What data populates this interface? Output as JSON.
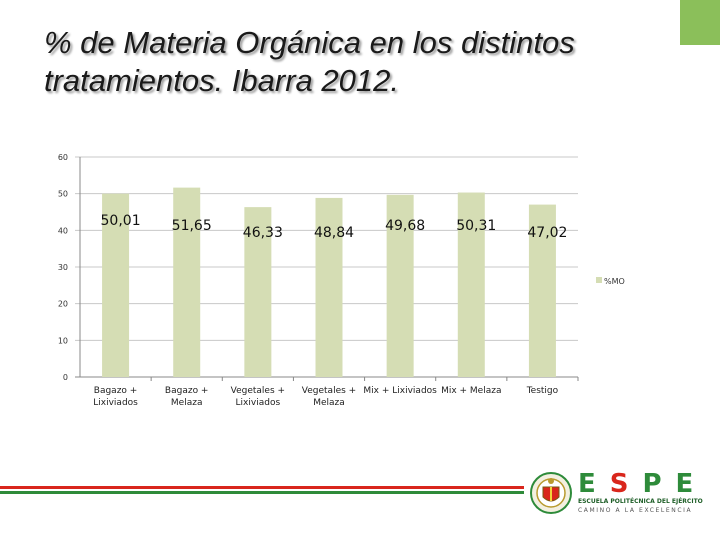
{
  "slide": {
    "title_line1": "% de Materia Orgánica  en los distintos",
    "title_line2": "tratamientos. Ibarra 2012."
  },
  "colors": {
    "bar": "#d5ddb4",
    "accent_green": "#8bbf5a",
    "red": "#d9261c",
    "green": "#2e8b3a"
  },
  "chart_data": {
    "type": "bar",
    "title": "",
    "xlabel": "",
    "ylabel": "",
    "ylim": [
      0,
      60
    ],
    "yticks": [
      0,
      10,
      20,
      30,
      40,
      50,
      60
    ],
    "grid": true,
    "legend_position": "right",
    "categories": [
      [
        "Bagazo +",
        "Lixiviados"
      ],
      [
        "Bagazo +",
        "Melaza"
      ],
      [
        "Vegetales +",
        "Lixiviados"
      ],
      [
        "Vegetales +",
        "Melaza"
      ],
      [
        "Mix + Lixiviados"
      ],
      [
        "Mix + Melaza"
      ],
      [
        "Testigo"
      ]
    ],
    "series": [
      {
        "name": "%MO",
        "values": [
          50.01,
          51.65,
          46.33,
          48.84,
          49.68,
          50.31,
          47.02
        ],
        "labels": [
          "50,01",
          "51,65",
          "46,33",
          "48,84",
          "49,68",
          "50,31",
          "47,02"
        ]
      }
    ]
  },
  "logo": {
    "word_green1": "E",
    "word_red": "S",
    "word_green2": "PE",
    "subtitle": "ESCUELA POLITÉCNICA DEL EJÉRCITO",
    "motto": "CAMINO A LA EXCELENCIA"
  }
}
